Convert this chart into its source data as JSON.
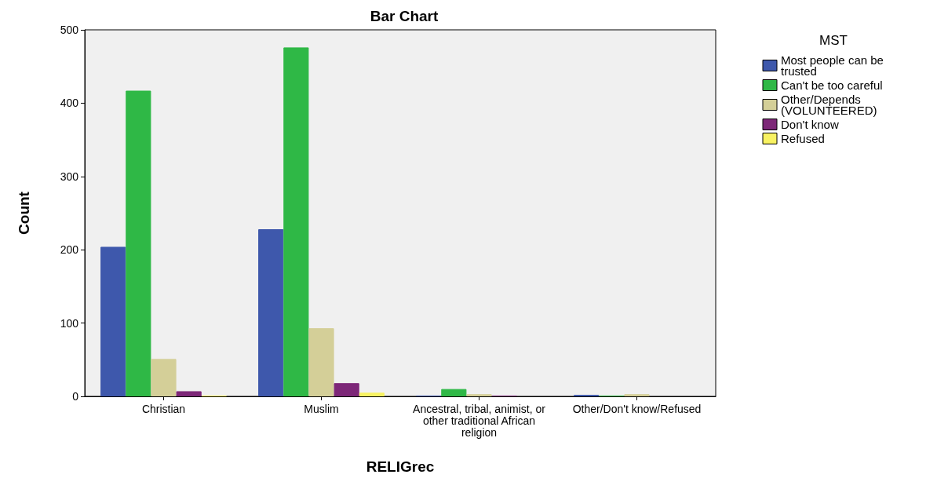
{
  "chart_data": {
    "type": "bar",
    "title": "Bar Chart",
    "xlabel": "RELIGrec",
    "ylabel": "Count",
    "legend_title": "MST",
    "legend": "top right",
    "grid": false,
    "categories": [
      "Christian",
      "Muslim",
      "Ancestral, tribal, animist, or other traditional African religion",
      "Other/Don't know/Refused"
    ],
    "ylim": [
      0,
      500
    ],
    "yticks": [
      0,
      100,
      200,
      300,
      400,
      500
    ],
    "series": [
      {
        "name": "Most people can be trusted",
        "color": "#3e58ac",
        "values": [
          204,
          228,
          1,
          2
        ]
      },
      {
        "name": "Can't be too careful",
        "color": "#2fb846",
        "values": [
          417,
          476,
          10,
          1
        ]
      },
      {
        "name": "Other/Depends (VOLUNTEERED)",
        "color": "#d4cf98",
        "values": [
          51,
          93,
          3,
          3
        ]
      },
      {
        "name": "Don't know",
        "color": "#7d2778",
        "values": [
          7,
          18,
          1,
          null
        ]
      },
      {
        "name": "Refused",
        "color": "#f8f262",
        "values": [
          1,
          5,
          null,
          null
        ]
      }
    ]
  }
}
